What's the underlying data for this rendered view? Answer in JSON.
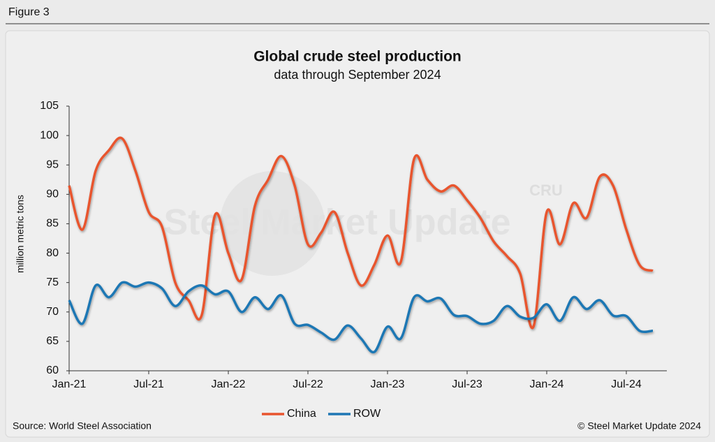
{
  "figure_label": "Figure 3",
  "chart_data": {
    "type": "line",
    "title": "Global crude steel production",
    "subtitle": "data through September 2024",
    "y_label": "million metric tons",
    "source": "Source: World Steel Association",
    "copyright": "© Steel Market Update 2024",
    "watermark": "Steel Market Update",
    "watermark_logo": "CRU",
    "categories": [
      "Jan-21",
      null,
      null,
      null,
      null,
      null,
      "Jul-21",
      null,
      null,
      null,
      null,
      null,
      "Jan-22",
      null,
      null,
      null,
      null,
      null,
      "Jul-22",
      null,
      null,
      null,
      null,
      null,
      "Jan-23",
      null,
      null,
      null,
      null,
      null,
      "Jul-23",
      null,
      null,
      null,
      null,
      null,
      "Jan-24",
      null,
      null,
      null,
      null,
      null,
      "Jul-24",
      null,
      null
    ],
    "series": [
      {
        "name": "China",
        "color": "#e8552f",
        "values": [
          91.5,
          84,
          94,
          97.5,
          99.5,
          94,
          87,
          84.5,
          75,
          72,
          69.5,
          86.5,
          80,
          75.5,
          88,
          92.5,
          96.5,
          91.5,
          81.5,
          83.5,
          87,
          80,
          74.5,
          78,
          83,
          78.5,
          96,
          92.5,
          90.5,
          91.5,
          89,
          86,
          82,
          79.5,
          76.5,
          67.5,
          87,
          81.5,
          88.5,
          86,
          93,
          91.5,
          84,
          78,
          77
        ]
      },
      {
        "name": "ROW",
        "color": "#1f77b4",
        "values": [
          72,
          68,
          74.5,
          72.5,
          75,
          74.3,
          75,
          74,
          71,
          73.5,
          74.5,
          73,
          73.5,
          70,
          72.5,
          70.5,
          72.8,
          68,
          67.8,
          66.5,
          65.3,
          67.7,
          65.5,
          63.2,
          67.5,
          65.5,
          72.5,
          71.8,
          72.3,
          69.5,
          69.3,
          68,
          68.5,
          71,
          69.2,
          69,
          71.3,
          68.5,
          72.5,
          70.5,
          72,
          69.4,
          69.3,
          66.8,
          66.8
        ]
      }
    ],
    "ylim": [
      60,
      105
    ],
    "yticks": [
      60,
      65,
      70,
      75,
      80,
      85,
      90,
      95,
      100,
      105
    ],
    "grid": false,
    "legend": "bottom"
  }
}
